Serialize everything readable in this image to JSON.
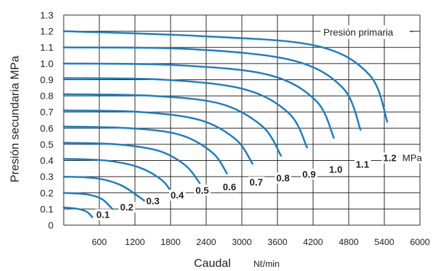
{
  "chart_data": {
    "type": "line",
    "xlabel": "Caudal",
    "xunit": "Nℓ/min",
    "ylabel": "Presión secundaria MPa",
    "xlim": [
      0,
      6000
    ],
    "ylim": [
      0,
      1.3
    ],
    "xticks": [
      "600",
      "1200",
      "1800",
      "2400",
      "3000",
      "3600",
      "4200",
      "4800",
      "5400",
      "6000"
    ],
    "yticks": [
      "0",
      "0.1",
      "0.2",
      "0.3",
      "0.4",
      "0.5",
      "0.6",
      "0.7",
      "0.8",
      "0.9",
      "1.0",
      "1.1",
      "1.2",
      "1.3"
    ],
    "grid": true,
    "annotation": "Presión primaria",
    "series_color": "#1a7fc1",
    "series": [
      {
        "name": "0.1",
        "points": [
          [
            0,
            0.11
          ],
          [
            250,
            0.1
          ],
          [
            400,
            0.08
          ],
          [
            480,
            0.05
          ]
        ]
      },
      {
        "name": "0.2",
        "points": [
          [
            0,
            0.2
          ],
          [
            400,
            0.19
          ],
          [
            650,
            0.16
          ],
          [
            820,
            0.1
          ]
        ]
      },
      {
        "name": "0.3",
        "points": [
          [
            0,
            0.3
          ],
          [
            550,
            0.29
          ],
          [
            950,
            0.25
          ],
          [
            1250,
            0.18
          ],
          [
            1360,
            0.15
          ]
        ]
      },
      {
        "name": "0.4",
        "points": [
          [
            0,
            0.41
          ],
          [
            700,
            0.4
          ],
          [
            1250,
            0.36
          ],
          [
            1650,
            0.28
          ],
          [
            1820,
            0.2
          ]
        ]
      },
      {
        "name": "0.5",
        "points": [
          [
            0,
            0.51
          ],
          [
            900,
            0.5
          ],
          [
            1600,
            0.46
          ],
          [
            2050,
            0.37
          ],
          [
            2290,
            0.26
          ]
        ]
      },
      {
        "name": "0.6",
        "points": [
          [
            0,
            0.61
          ],
          [
            1100,
            0.6
          ],
          [
            1950,
            0.56
          ],
          [
            2500,
            0.45
          ],
          [
            2750,
            0.32
          ]
        ]
      },
      {
        "name": "0.7",
        "points": [
          [
            0,
            0.71
          ],
          [
            1300,
            0.7
          ],
          [
            2300,
            0.65
          ],
          [
            2900,
            0.53
          ],
          [
            3180,
            0.38
          ]
        ]
      },
      {
        "name": "0.8",
        "points": [
          [
            0,
            0.81
          ],
          [
            1500,
            0.8
          ],
          [
            2650,
            0.75
          ],
          [
            3350,
            0.61
          ],
          [
            3660,
            0.43
          ]
        ]
      },
      {
        "name": "0.9",
        "points": [
          [
            0,
            0.91
          ],
          [
            1700,
            0.9
          ],
          [
            3050,
            0.84
          ],
          [
            3800,
            0.69
          ],
          [
            4100,
            0.48
          ]
        ]
      },
      {
        "name": "1.0",
        "points": [
          [
            0,
            1.0
          ],
          [
            1900,
            0.99
          ],
          [
            3450,
            0.93
          ],
          [
            4250,
            0.77
          ],
          [
            4550,
            0.54
          ]
        ]
      },
      {
        "name": "1.1",
        "points": [
          [
            0,
            1.1
          ],
          [
            2100,
            1.09
          ],
          [
            3850,
            1.02
          ],
          [
            4700,
            0.85
          ],
          [
            5000,
            0.59
          ]
        ]
      },
      {
        "name": "1.2",
        "points": [
          [
            0,
            1.2
          ],
          [
            2300,
            1.17
          ],
          [
            4250,
            1.11
          ],
          [
            5150,
            0.93
          ],
          [
            5450,
            0.64
          ]
        ]
      }
    ],
    "curve_labels": [
      {
        "text": "0.1",
        "x": 550,
        "y": 0.045
      },
      {
        "text": "0.2",
        "x": 950,
        "y": 0.09
      },
      {
        "text": "0.3",
        "x": 1390,
        "y": 0.13
      },
      {
        "text": "0.4",
        "x": 1800,
        "y": 0.165
      },
      {
        "text": "0.5",
        "x": 2220,
        "y": 0.195
      },
      {
        "text": "0.6",
        "x": 2680,
        "y": 0.215
      },
      {
        "text": "0.7",
        "x": 3130,
        "y": 0.245
      },
      {
        "text": "0.8",
        "x": 3580,
        "y": 0.27
      },
      {
        "text": "0.9",
        "x": 4020,
        "y": 0.295
      },
      {
        "text": "1.0",
        "x": 4470,
        "y": 0.325
      },
      {
        "text": "1.1",
        "x": 4920,
        "y": 0.355
      },
      {
        "text": "1.2",
        "x": 5380,
        "y": 0.395
      }
    ],
    "curve_label_unit": "MPa"
  }
}
